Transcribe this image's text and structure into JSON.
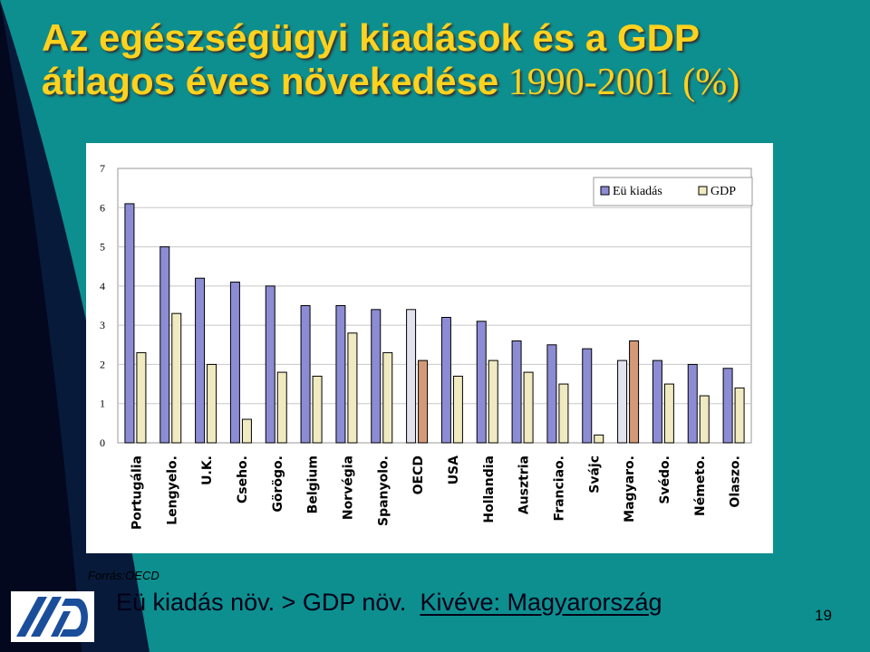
{
  "title": {
    "line1": "Az egészségügyi kiadások és a GDP",
    "line2_bold": "átlagos éves növekedése",
    "line2_rest": " 1990-2001 (%)"
  },
  "source": "Forrás:OECD",
  "conclusion": {
    "part1": "Eü kiadás növ. > GDP növ.",
    "part2": "Kivéve: Magyarország"
  },
  "page_number": "19",
  "colors": {
    "background": "#0d8f8f",
    "title": "#ffd21e",
    "eu_bar": "#8c8cd4",
    "gdp_bar": "#f0eac0",
    "oecd_eu_bar": "#e2e2ee",
    "oecd_gdp_bar": "#d49a78",
    "hungary_eu_bar": "#e2e2ee",
    "hungary_gdp_bar": "#d49a78"
  },
  "chart_data": {
    "type": "bar",
    "categories": [
      "Portugália",
      "Lengyelo.",
      "U.K.",
      "Cseho.",
      "Görögo.",
      "Belgium",
      "Norvégia",
      "Spanyolo.",
      "OECD",
      "USA",
      "Hollandia",
      "Ausztria",
      "Franciao.",
      "Svájc",
      "Magyaro.",
      "Svédo.",
      "Németo.",
      "Olaszo."
    ],
    "series": [
      {
        "name": "Eü kiadás",
        "values": [
          6.1,
          5.0,
          4.2,
          4.1,
          4.0,
          3.5,
          3.5,
          3.4,
          3.4,
          3.2,
          3.1,
          2.6,
          2.5,
          2.4,
          2.1,
          2.1,
          2.0,
          1.9
        ]
      },
      {
        "name": "GDP",
        "values": [
          2.3,
          3.3,
          2.0,
          0.6,
          1.8,
          1.7,
          2.8,
          2.3,
          2.1,
          1.7,
          2.1,
          1.8,
          1.5,
          0.2,
          2.6,
          1.5,
          1.2,
          1.4
        ]
      }
    ],
    "yticks": [
      "0",
      "1",
      "2",
      "3",
      "4",
      "5",
      "6",
      "7"
    ],
    "ylim": [
      0,
      7
    ],
    "grid": true,
    "legend": "top-right",
    "highlighted_categories": [
      "OECD",
      "Magyaro."
    ]
  }
}
